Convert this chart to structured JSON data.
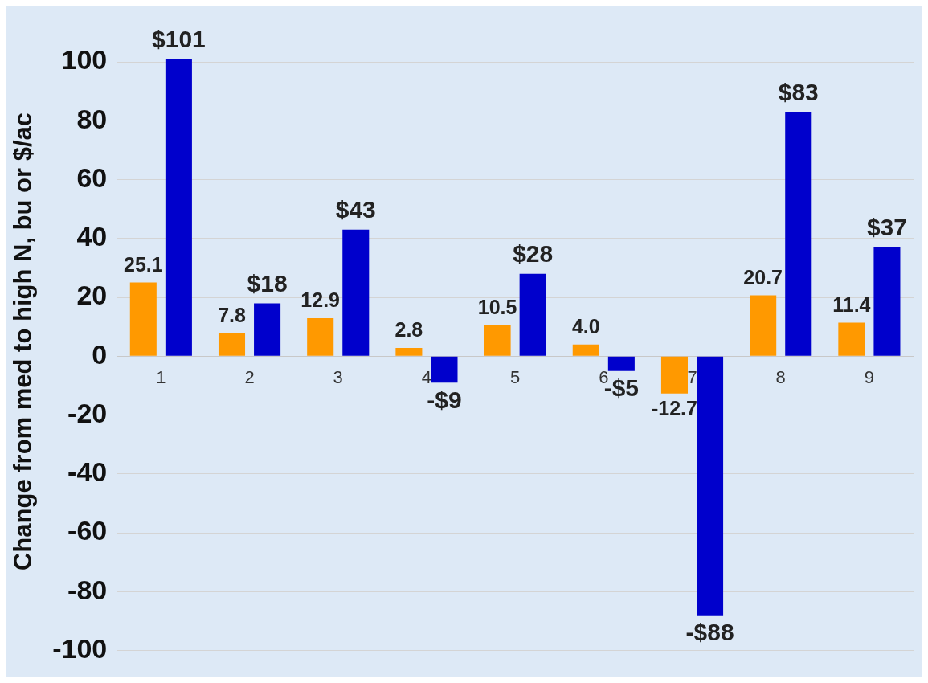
{
  "chart_data": {
    "type": "bar",
    "ylabel": "Change from med to high N, bu or $/ac",
    "categories": [
      "1",
      "2",
      "3",
      "4",
      "5",
      "6",
      "7",
      "8",
      "9"
    ],
    "series": [
      {
        "color": "#ff9900",
        "values": [
          25.1,
          7.8,
          12.9,
          2.8,
          10.5,
          4.0,
          -12.7,
          20.7,
          11.4
        ],
        "value_labels": [
          "25.1",
          "7.8",
          "12.9",
          "2.8",
          "10.5",
          "4.0",
          "-12.7",
          "20.7",
          "11.4"
        ]
      },
      {
        "color": "#0000cc",
        "values": [
          101,
          18,
          43,
          -9,
          28,
          -5,
          -88,
          83,
          37
        ],
        "value_labels": [
          "$101",
          "$18",
          "$43",
          "-$9",
          "$28",
          "-$5",
          "-$88",
          "$83",
          "$37"
        ]
      }
    ],
    "ylim": [
      -100,
      110
    ],
    "yticks": [
      -100,
      -80,
      -60,
      -40,
      -20,
      0,
      20,
      40,
      60,
      80,
      100
    ],
    "grid": "y",
    "legend": false
  }
}
